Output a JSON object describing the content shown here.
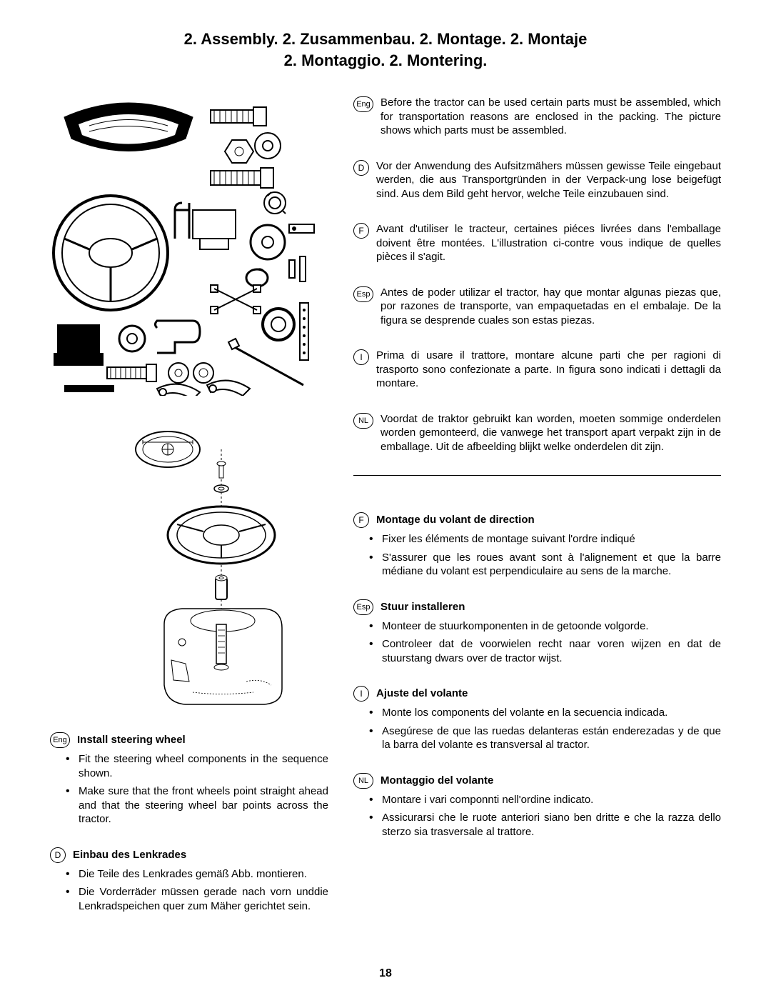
{
  "page_number": "18",
  "title_line1": "2. Assembly. 2. Zusammenbau. 2. Montage. 2. Montaje",
  "title_line2": "2. Montaggio. 2. Montering.",
  "intro": [
    {
      "code": "Eng",
      "shape": "oval",
      "text": "Before the tractor can be used certain parts must be assembled, which for transportation reasons are enclosed in the packing. The picture shows which parts must be assembled."
    },
    {
      "code": "D",
      "shape": "circle",
      "text": "Vor der Anwendung des Aufsitzmähers müssen gewisse Teile eingebaut werden, die aus Transportgründen in der Verpack-ung lose beigefügt sind. Aus dem Bild geht hervor, welche Teile einzubauen sind."
    },
    {
      "code": "F",
      "shape": "circle",
      "text": "Avant d'utiliser le tracteur, certaines piéces livrées dans l'emballage doivent être montées. L'illustration ci-contre vous indique de quelles pièces il s'agit."
    },
    {
      "code": "Esp",
      "shape": "oval",
      "text": "Antes de poder utilizar el tractor, hay que montar algunas piezas que, por razones de transporte, van empaquetadas en el embalaje. De la figura se desprende cuales son estas piezas."
    },
    {
      "code": "I",
      "shape": "circle",
      "text": "Prima di usare il trattore, montare alcune parti che per ragioni di trasporto sono confezionate a parte. In figura sono indicati i dettagli da montare."
    },
    {
      "code": "NL",
      "shape": "oval",
      "text": "Voordat de traktor gebruikt kan worden, moeten sommige onderdelen worden gemonteerd, die vanwege het transport apart verpakt zijn in de emballage. Uit de afbeelding blijkt welke onderdelen dit zijn."
    }
  ],
  "left_sections": [
    {
      "code": "Eng",
      "shape": "oval",
      "title": "Install steering wheel",
      "items": [
        "Fit the steering wheel components in the sequence shown.",
        "Make sure that the front wheels point straight ahead and that the steering wheel bar points across the tractor."
      ]
    },
    {
      "code": "D",
      "shape": "circle",
      "title": "Einbau des Lenkrades",
      "items": [
        "Die Teile des Lenkrades gemäß Abb. montieren.",
        "Die Vorderräder müssen gerade nach vorn unddie Lenkradspeichen quer zum Mäher gerichtet sein."
      ]
    }
  ],
  "right_sections": [
    {
      "code": "F",
      "shape": "circle",
      "title": "Montage du volant de direction",
      "items": [
        "Fixer les éléments de montage suivant l'ordre indiqué",
        "S'assurer que les roues avant sont à l'alignement et que la barre médiane du volant est perpendiculaire au sens de la marche."
      ]
    },
    {
      "code": "Esp",
      "shape": "oval",
      "title": "Stuur installeren",
      "items": [
        "Monteer de stuurkomponenten in de getoonde volgorde.",
        "Controleer dat de voorwielen recht naar voren wijzen en dat de stuurstang dwars over de tractor wijst."
      ]
    },
    {
      "code": "I",
      "shape": "circle",
      "title": "Ajuste del volante",
      "items": [
        "Monte los components del volante en la secuencia indicada.",
        "Asegúrese de que las ruedas delanteras están enderezadas y de que la barra del volante es transversal al tractor."
      ]
    },
    {
      "code": "NL",
      "shape": "oval",
      "title": "Montaggio del volante",
      "items": [
        "Montare i vari componnti nell'ordine indicato.",
        "Assicurarsi che le ruote anteriori siano ben dritte e che la razza dello sterzo sia trasversale al trattore."
      ]
    }
  ],
  "colors": {
    "text": "#000000",
    "background": "#ffffff"
  }
}
